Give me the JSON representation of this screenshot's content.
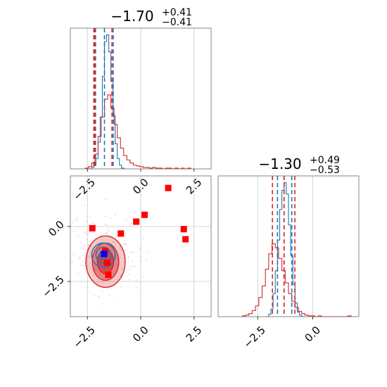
{
  "chart_data": [
    {
      "type": "histogram",
      "panel": "top-left",
      "title": {
        "main": "−1.70",
        "sup": "+0.41",
        "sub": "−0.41"
      },
      "xlim": [
        -3.3,
        3.3
      ],
      "xticks": [
        -2.5,
        0.0,
        2.5
      ],
      "grid": true,
      "colors": {
        "blue": "#1f77b4",
        "red": "#d62728"
      },
      "series": [
        {
          "color": "#1f77b4",
          "bin_start": -2.4,
          "bin_width": 0.1,
          "counts": [
            0,
            2,
            6,
            14,
            36,
            70,
            125,
            172,
            181,
            158,
            118,
            72,
            34,
            14,
            5,
            1,
            0
          ]
        },
        {
          "color": "#d62728",
          "bin_start": -2.6,
          "bin_width": 0.15,
          "counts": [
            1,
            3,
            8,
            20,
            44,
            70,
            94,
            100,
            82,
            60,
            42,
            28,
            18,
            12,
            8,
            5,
            4,
            3,
            2,
            2,
            1,
            2,
            1,
            1,
            0,
            1,
            1,
            0,
            1,
            0,
            1,
            0,
            1
          ]
        }
      ],
      "quantile_lines": [
        {
          "color": "#1f77b4",
          "values": [
            -2.12,
            -1.7,
            -1.29
          ]
        },
        {
          "color": "#d62728",
          "values": [
            -2.2,
            -2.15,
            -1.35
          ]
        }
      ]
    },
    {
      "type": "histogram",
      "panel": "bottom-right",
      "title": {
        "main": "−1.30",
        "sup": "+0.49",
        "sub": "−0.53"
      },
      "xlim": [
        -4.3,
        2.1
      ],
      "xticks": [
        -2.5,
        0.0
      ],
      "grid": true,
      "series": [
        {
          "color": "#1f77b4",
          "bin_start": -2.1,
          "bin_width": 0.1,
          "counts": [
            0,
            3,
            10,
            30,
            60,
            100,
            140,
            165,
            175,
            160,
            120,
            80,
            42,
            18,
            6,
            2,
            0
          ]
        },
        {
          "color": "#d62728",
          "bin_start": -3.2,
          "bin_width": 0.15,
          "counts": [
            1,
            2,
            4,
            8,
            14,
            25,
            40,
            62,
            82,
            95,
            90,
            76,
            60,
            44,
            30,
            20,
            12,
            7,
            4,
            2,
            1,
            1,
            0,
            1,
            0,
            0,
            0,
            0,
            0,
            0,
            0,
            0,
            1
          ]
        }
      ],
      "quantile_lines": [
        {
          "color": "#1f77b4",
          "values": [
            -1.6,
            -1.3,
            -0.95
          ]
        },
        {
          "color": "#d62728",
          "values": [
            -1.83,
            -1.3,
            -0.81
          ]
        }
      ]
    },
    {
      "type": "scatter",
      "panel": "bottom-left",
      "xlim": [
        -3.3,
        3.3
      ],
      "ylim": [
        -4.1,
        2.3
      ],
      "xticks": [
        -2.5,
        0.0,
        2.5
      ],
      "yticks": [
        0.0,
        -2.5
      ],
      "grid": true,
      "red_markers": [
        {
          "x": -2.27,
          "y": -0.08
        },
        {
          "x": -1.67,
          "y": -1.12
        },
        {
          "x": -1.58,
          "y": -1.65
        },
        {
          "x": -1.52,
          "y": -2.2
        },
        {
          "x": -0.93,
          "y": -0.32
        },
        {
          "x": -0.21,
          "y": 0.22
        },
        {
          "x": 0.18,
          "y": 0.53
        },
        {
          "x": 1.29,
          "y": 1.75
        },
        {
          "x": 2.02,
          "y": -0.12
        },
        {
          "x": 2.1,
          "y": -0.58
        }
      ],
      "blue_marker": {
        "x": -1.72,
        "y": -1.25
      },
      "red_contours": [
        {
          "sx": 0.92,
          "sy": 1.17,
          "opacity": 0.25
        },
        {
          "sx": 0.62,
          "sy": 0.85,
          "opacity": 0.45
        },
        {
          "sx": 0.38,
          "sy": 0.55,
          "opacity": 0.65
        }
      ],
      "red_center": {
        "x": -1.65,
        "y": -1.6
      },
      "blue_center": {
        "x": -1.75,
        "y": -1.3
      },
      "blue_contours": [
        {
          "sx": 0.55,
          "sy": 0.55
        },
        {
          "sx": 0.35,
          "sy": 0.36
        },
        {
          "sx": 0.18,
          "sy": 0.2
        }
      ]
    }
  ]
}
